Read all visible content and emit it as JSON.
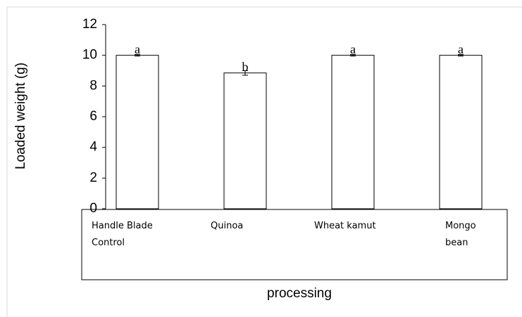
{
  "chart_data": {
    "type": "bar",
    "categories": [
      "Handle Blade Control",
      "Quinoa",
      "Wheat kamut",
      "Mongo bean"
    ],
    "values": [
      10,
      8.85,
      10,
      10
    ],
    "errors": [
      0.05,
      0.15,
      0.05,
      0.05
    ],
    "annotations": [
      "a",
      "b",
      "a",
      "a"
    ],
    "color": "#ffffff",
    "y_label": "Loaded weight (g)",
    "x_label": "processing",
    "ylim": [
      0,
      12
    ],
    "yticks": [
      0,
      2,
      4,
      6,
      8,
      10,
      12
    ],
    "grid": false
  }
}
